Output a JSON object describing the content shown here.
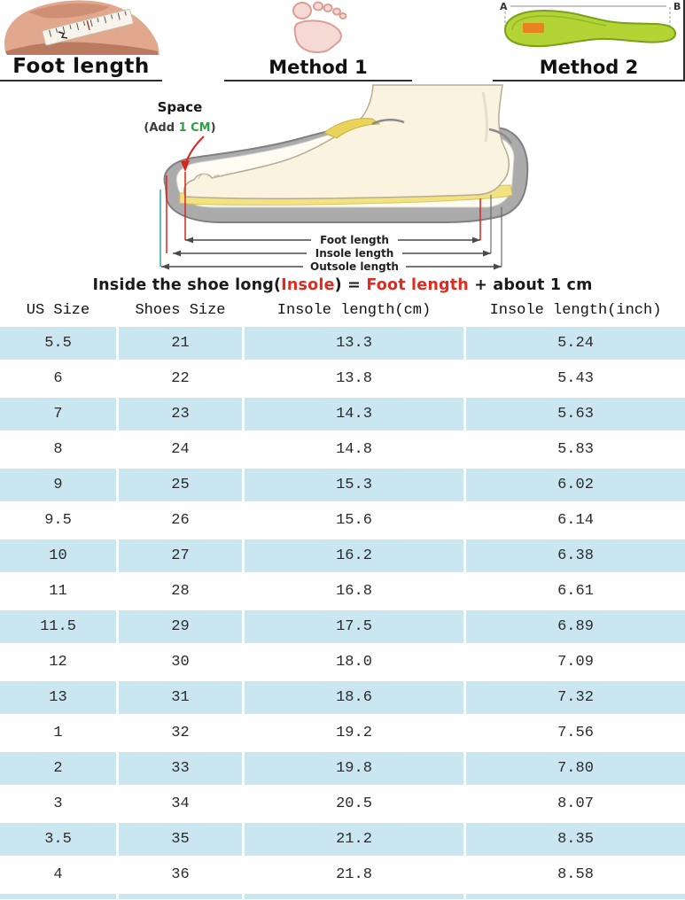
{
  "top": {
    "foot_length_label": "Foot length",
    "method1_label": "Method 1",
    "method2_label": "Method 2",
    "insole_a": "A",
    "insole_b": "B"
  },
  "diagram": {
    "space_label": "Space",
    "add_prefix": "(Add ",
    "add_value": "1 CM",
    "add_suffix": ")",
    "measure_foot": "Foot length",
    "measure_insole": "Insole length",
    "measure_outsole": "Outsole length"
  },
  "formula": {
    "part1": "Inside the shoe long(",
    "part2": "Insole",
    "part3": ") = ",
    "part4": "Foot length",
    "part5": " + about 1 cm"
  },
  "chart_data": {
    "type": "table",
    "columns": [
      "US Size",
      "Shoes Size",
      "Insole length(cm)",
      "Insole length(inch)"
    ],
    "rows": [
      [
        "5.5",
        "21",
        "13.3",
        "5.24"
      ],
      [
        "6",
        "22",
        "13.8",
        "5.43"
      ],
      [
        "7",
        "23",
        "14.3",
        "5.63"
      ],
      [
        "8",
        "24",
        "14.8",
        "5.83"
      ],
      [
        "9",
        "25",
        "15.3",
        "6.02"
      ],
      [
        "9.5",
        "26",
        "15.6",
        "6.14"
      ],
      [
        "10",
        "27",
        "16.2",
        "6.38"
      ],
      [
        "11",
        "28",
        "16.8",
        "6.61"
      ],
      [
        "11.5",
        "29",
        "17.5",
        "6.89"
      ],
      [
        "12",
        "30",
        "18.0",
        "7.09"
      ],
      [
        "13",
        "31",
        "18.6",
        "7.32"
      ],
      [
        "1",
        "32",
        "19.2",
        "7.56"
      ],
      [
        "2",
        "33",
        "19.8",
        "7.80"
      ],
      [
        "3",
        "34",
        "20.5",
        "8.07"
      ],
      [
        "3.5",
        "35",
        "21.2",
        "8.35"
      ],
      [
        "4",
        "36",
        "21.8",
        "8.58"
      ]
    ]
  },
  "colors": {
    "row_blue": "#c9e6f1",
    "accent_red": "#e02b20",
    "cm_green": "#2f9e44",
    "insole_green": "#b3d433"
  }
}
